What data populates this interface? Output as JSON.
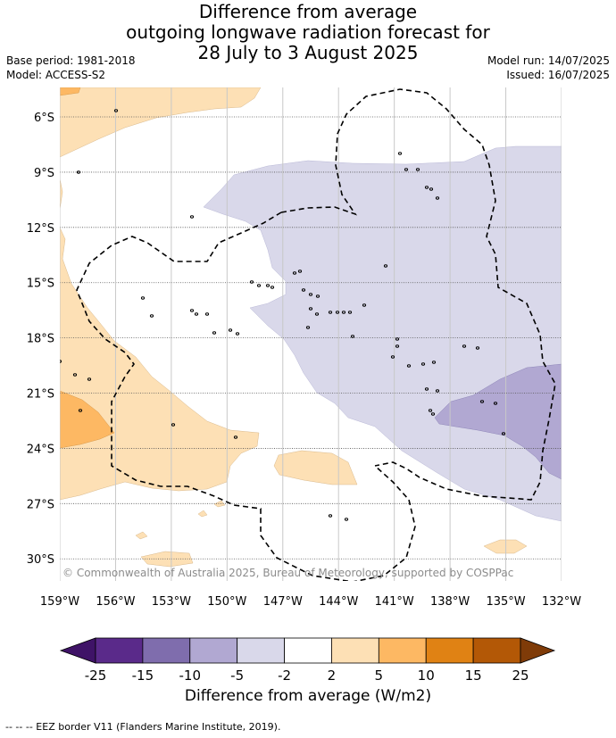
{
  "title": {
    "line1": "Difference from average",
    "line2": "outgoing longwave radiation forecast for",
    "line3": "28 July to 3 August 2025"
  },
  "meta": {
    "base_period": "Base period: 1981-2018",
    "model": "Model: ACCESS-S2",
    "model_run": "Model run: 14/07/2025",
    "issued": "Issued: 16/07/2025"
  },
  "map": {
    "lat_labels": [
      "6°S",
      "9°S",
      "12°S",
      "15°S",
      "18°S",
      "21°S",
      "24°S",
      "27°S",
      "30°S"
    ],
    "lat_values": [
      -6,
      -9,
      -12,
      -15,
      -18,
      -21,
      -24,
      -27,
      -30
    ],
    "lon_labels": [
      "159°W",
      "156°W",
      "153°W",
      "150°W",
      "147°W",
      "144°W",
      "141°W",
      "138°W",
      "135°W",
      "132°W"
    ],
    "lon_values": [
      -159,
      -156,
      -153,
      -150,
      -147,
      -144,
      -141,
      -138,
      -135,
      -132
    ],
    "lon_range": [
      -159,
      -132
    ],
    "lat_range": [
      -31.2,
      -4.4
    ],
    "copyright": "© Commonwealth of Australia 2025, Bureau of Meteorology, supported by COSPPac"
  },
  "colorbar": {
    "ticks": [
      "-25",
      "-15",
      "-10",
      "-5",
      "-2",
      "2",
      "5",
      "10",
      "15",
      "25"
    ],
    "colors": [
      "#5a2a8a",
      "#7f6dad",
      "#b1a8d2",
      "#d9d8ea",
      "#ffffff",
      "#fde0b5",
      "#fdb863",
      "#e08214",
      "#b35806"
    ],
    "under_color": "#3f1367",
    "over_color": "#7f3b08",
    "label": "Difference from average (W/m2)"
  },
  "footnote": "-- -- -- EEZ border V11 (Flanders Marine Institute, 2019)."
}
